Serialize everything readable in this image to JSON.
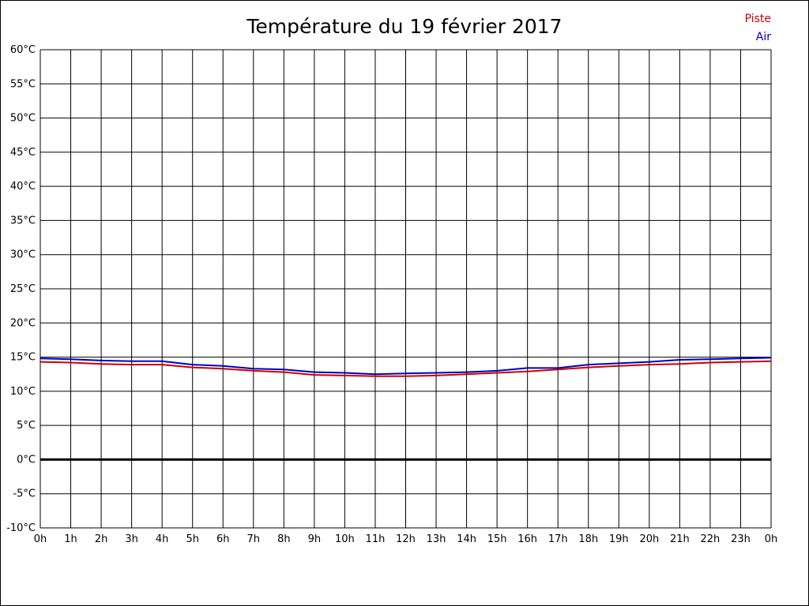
{
  "page": {
    "title": "Température du 19 février 2017"
  },
  "legend": {
    "items": [
      {
        "label": "Piste",
        "color": "#cc0000"
      },
      {
        "label": "Air",
        "color": "#0000bb"
      }
    ]
  },
  "chart_data": {
    "type": "line",
    "title": "Température du 19 février 2017",
    "xlabel": "",
    "ylabel": "",
    "xlim": [
      0,
      24
    ],
    "ylim": [
      -10,
      60
    ],
    "grid": true,
    "grid_color": "#000000",
    "zero_line": {
      "value": 0,
      "color": "#000000",
      "width": 3
    },
    "x_ticks": [
      0,
      1,
      2,
      3,
      4,
      5,
      6,
      7,
      8,
      9,
      10,
      11,
      12,
      13,
      14,
      15,
      16,
      17,
      18,
      19,
      20,
      21,
      22,
      23,
      24
    ],
    "x_tick_labels": [
      "0h",
      "1h",
      "2h",
      "3h",
      "4h",
      "5h",
      "6h",
      "7h",
      "8h",
      "9h",
      "10h",
      "11h",
      "12h",
      "13h",
      "14h",
      "15h",
      "16h",
      "17h",
      "18h",
      "19h",
      "20h",
      "21h",
      "22h",
      "23h",
      "0h"
    ],
    "y_ticks": [
      60,
      55,
      50,
      45,
      40,
      35,
      30,
      25,
      20,
      15,
      10,
      5,
      0,
      -5,
      -10
    ],
    "y_tick_labels": [
      "60°C",
      "55°C",
      "50°C",
      "45°C",
      "40°C",
      "35°C",
      "30°C",
      "25°C",
      "20°C",
      "15°C",
      "10°C",
      "5°C",
      "0°C",
      "-5°C",
      "-10°C"
    ],
    "legend_position": "top-right",
    "x": [
      0,
      1,
      2,
      3,
      4,
      5,
      6,
      7,
      8,
      9,
      10,
      11,
      12,
      13,
      14,
      15,
      16,
      17,
      18,
      19,
      20,
      21,
      22,
      23,
      24
    ],
    "series": [
      {
        "name": "Piste",
        "color": "#cc0000",
        "values": [
          14.3,
          14.2,
          14.0,
          13.9,
          13.9,
          13.5,
          13.3,
          13.0,
          12.8,
          12.4,
          12.3,
          12.2,
          12.2,
          12.3,
          12.5,
          12.7,
          12.9,
          13.2,
          13.5,
          13.7,
          13.9,
          14.0,
          14.2,
          14.3,
          14.4
        ]
      },
      {
        "name": "Air",
        "color": "#0000bb",
        "values": [
          14.8,
          14.7,
          14.5,
          14.4,
          14.4,
          13.9,
          13.7,
          13.3,
          13.2,
          12.8,
          12.7,
          12.5,
          12.6,
          12.7,
          12.8,
          13.0,
          13.4,
          13.4,
          13.9,
          14.1,
          14.3,
          14.6,
          14.7,
          14.8,
          14.9
        ]
      }
    ]
  }
}
